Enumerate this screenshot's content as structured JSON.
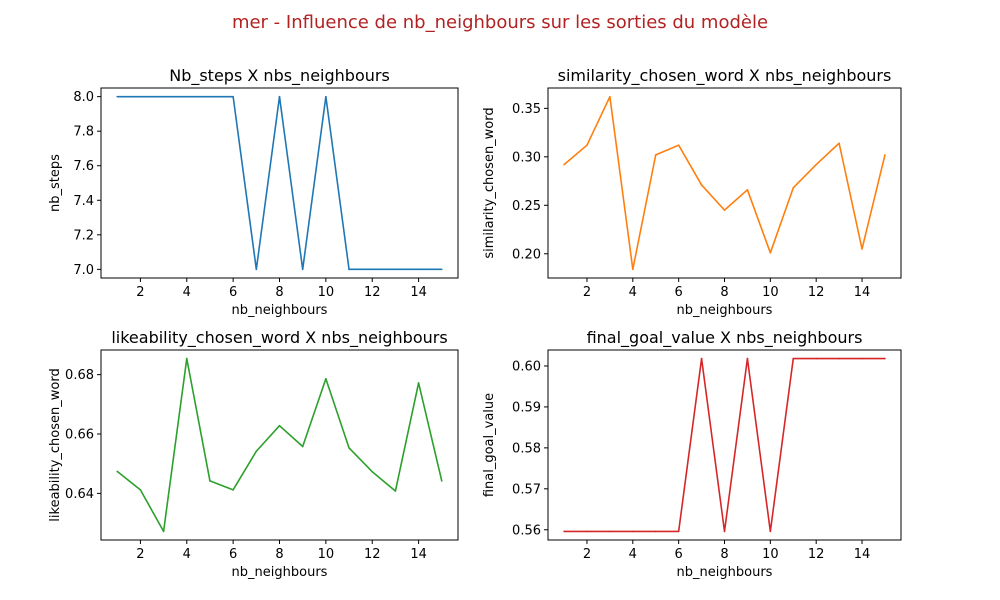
{
  "suptitle": "mer - Influence de nb_neighbours sur les sorties du modèle",
  "suptitle_color": "#b22222",
  "chart_data": [
    {
      "type": "line",
      "title": "Nb_steps X nbs_neighbours",
      "xlabel": "nb_neighbours",
      "ylabel": "nb_steps",
      "color": "#1f77b4",
      "x": [
        1,
        2,
        3,
        4,
        5,
        6,
        7,
        8,
        9,
        10,
        11,
        12,
        13,
        14,
        15
      ],
      "y": [
        8,
        8,
        8,
        8,
        8,
        8,
        7,
        8,
        7,
        8,
        7,
        7,
        7,
        7,
        7
      ],
      "xlim": [
        0.3,
        15.7
      ],
      "ylim": [
        6.95,
        8.05
      ],
      "xticks": [
        2,
        4,
        6,
        8,
        10,
        12,
        14
      ],
      "yticks": [
        7.0,
        7.2,
        7.4,
        7.6,
        7.8,
        8.0
      ],
      "ytick_labels": [
        "7.0",
        "7.2",
        "7.4",
        "7.6",
        "7.8",
        "8.0"
      ]
    },
    {
      "type": "line",
      "title": "similarity_chosen_word X nbs_neighbours",
      "xlabel": "nb_neighbours",
      "ylabel": "similarity_chosen_word",
      "color": "#ff7f0e",
      "x": [
        1,
        2,
        3,
        4,
        5,
        6,
        7,
        8,
        9,
        10,
        11,
        12,
        13,
        14,
        15
      ],
      "y": [
        0.292,
        0.312,
        0.362,
        0.184,
        0.302,
        0.312,
        0.271,
        0.245,
        0.266,
        0.201,
        0.268,
        0.292,
        0.314,
        0.205,
        0.302
      ],
      "xlim": [
        0.3,
        15.7
      ],
      "ylim": [
        0.175,
        0.371
      ],
      "xticks": [
        2,
        4,
        6,
        8,
        10,
        12,
        14
      ],
      "yticks": [
        0.2,
        0.25,
        0.3,
        0.35
      ],
      "ytick_labels": [
        "0.20",
        "0.25",
        "0.30",
        "0.35"
      ]
    },
    {
      "type": "line",
      "title": "likeability_chosen_word X nbs_neighbours",
      "xlabel": "nb_neighbours",
      "ylabel": "likeability_chosen_word",
      "color": "#2ca02c",
      "x": [
        1,
        2,
        3,
        4,
        5,
        6,
        7,
        8,
        9,
        10,
        11,
        12,
        13,
        14,
        15
      ],
      "y": [
        0.6474,
        0.6412,
        0.6272,
        0.6854,
        0.6442,
        0.6412,
        0.6542,
        0.6628,
        0.6558,
        0.6786,
        0.6553,
        0.6473,
        0.6408,
        0.6772,
        0.6442
      ],
      "xlim": [
        0.3,
        15.7
      ],
      "ylim": [
        0.6243,
        0.6883
      ],
      "xticks": [
        2,
        4,
        6,
        8,
        10,
        12,
        14
      ],
      "yticks": [
        0.64,
        0.66,
        0.68
      ],
      "ytick_labels": [
        "0.64",
        "0.66",
        "0.68"
      ]
    },
    {
      "type": "line",
      "title": "final_goal_value X nbs_neighbours",
      "xlabel": "nb_neighbours",
      "ylabel": "final_goal_value",
      "color": "#d62728",
      "x": [
        1,
        2,
        3,
        4,
        5,
        6,
        7,
        8,
        9,
        10,
        11,
        12,
        13,
        14,
        15
      ],
      "y": [
        0.5596,
        0.5596,
        0.5596,
        0.5596,
        0.5596,
        0.5596,
        0.6018,
        0.5596,
        0.6018,
        0.5596,
        0.6018,
        0.6018,
        0.6018,
        0.6018,
        0.6018
      ],
      "xlim": [
        0.3,
        15.7
      ],
      "ylim": [
        0.5575,
        0.6039
      ],
      "xticks": [
        2,
        4,
        6,
        8,
        10,
        12,
        14
      ],
      "yticks": [
        0.56,
        0.57,
        0.58,
        0.59,
        0.6
      ],
      "ytick_labels": [
        "0.56",
        "0.57",
        "0.58",
        "0.59",
        "0.60"
      ]
    }
  ]
}
